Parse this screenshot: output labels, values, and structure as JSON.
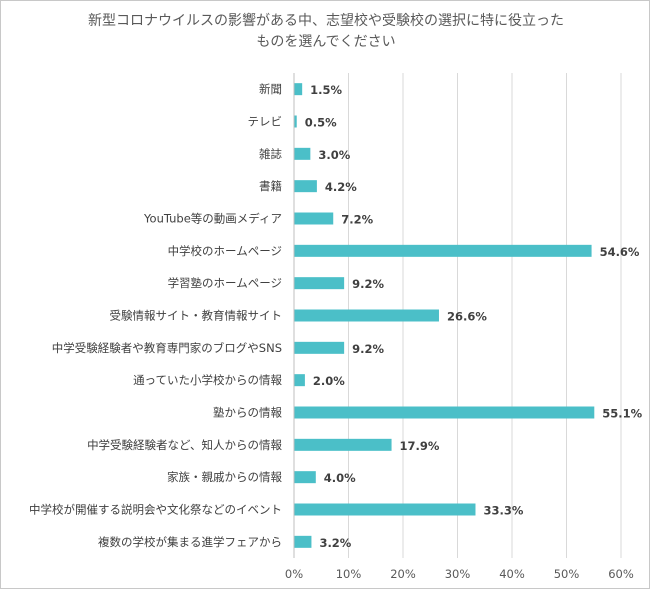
{
  "chart_data": {
    "type": "bar",
    "orientation": "horizontal",
    "title_lines": [
      "新型コロナウイルスの影響がある中、志望校や受験校の選択に特に役立った",
      "ものを選んでください"
    ],
    "categories": [
      "新聞",
      "テレビ",
      "雑誌",
      "書籍",
      "YouTube等の動画メディア",
      "中学校のホームページ",
      "学習塾のホームページ",
      "受験情報サイト・教育情報サイト",
      "中学受験経験者や教育専門家のブログやSNS",
      "通っていた小学校からの情報",
      "塾からの情報",
      "中学受験経験者など、知人からの情報",
      "家族・親戚からの情報",
      "中学校が開催する説明会や文化祭などのイベント",
      "複数の学校が集まる進学フェアから"
    ],
    "values": [
      1.5,
      0.5,
      3.0,
      4.2,
      7.2,
      54.6,
      9.2,
      26.6,
      9.2,
      2.0,
      55.1,
      17.9,
      4.0,
      33.3,
      3.2
    ],
    "value_labels": [
      "1.5%",
      "0.5%",
      "3.0%",
      "4.2%",
      "7.2%",
      "54.6%",
      "9.2%",
      "26.6%",
      "9.2%",
      "2.0%",
      "55.1%",
      "17.9%",
      "4.0%",
      "33.3%",
      "3.2%"
    ],
    "x_ticks": [
      0,
      10,
      20,
      30,
      40,
      50,
      60
    ],
    "x_tick_labels": [
      "0%",
      "10%",
      "20%",
      "30%",
      "40%",
      "50%",
      "60%"
    ],
    "xlim": [
      0,
      60
    ],
    "grid": true,
    "legend": "none",
    "bar_color": "#4bbfc8"
  }
}
